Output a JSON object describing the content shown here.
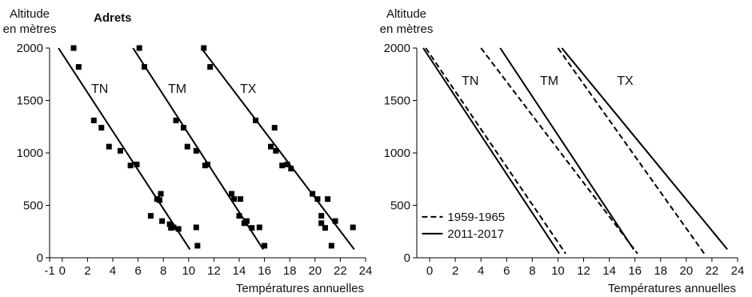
{
  "chart_data": [
    {
      "type": "scatter",
      "title": "Adrets",
      "ylabel_lines": [
        "Altitude",
        "en mètres"
      ],
      "xlabel": "Températures annuelles",
      "xlim": [
        -1,
        24
      ],
      "ylim": [
        0,
        2000
      ],
      "xticks": [
        -1,
        0,
        2,
        4,
        6,
        8,
        10,
        12,
        14,
        16,
        18,
        20,
        22,
        24
      ],
      "yticks": [
        0,
        500,
        1000,
        1500,
        2000
      ],
      "line_color": "#000000",
      "series": [
        {
          "name": "TN",
          "points": [
            [
              0.9,
              2000
            ],
            [
              1.3,
              1820
            ],
            [
              2.5,
              1310
            ],
            [
              3.1,
              1240
            ],
            [
              3.7,
              1060
            ],
            [
              4.6,
              1020
            ],
            [
              5.4,
              880
            ],
            [
              5.9,
              890
            ],
            [
              7.0,
              400
            ],
            [
              7.5,
              560
            ],
            [
              7.8,
              610
            ],
            [
              7.9,
              350
            ],
            [
              7.7,
              550
            ],
            [
              8.5,
              320
            ],
            [
              8.8,
              290
            ],
            [
              8.6,
              285
            ],
            [
              9.2,
              275
            ],
            [
              10.6,
              290
            ],
            [
              10.7,
              115
            ]
          ],
          "fit": [
            [
              -0.3,
              2000
            ],
            [
              10.1,
              80
            ]
          ]
        },
        {
          "name": "TM",
          "points": [
            [
              6.1,
              2000
            ],
            [
              6.5,
              1820
            ],
            [
              9.0,
              1310
            ],
            [
              9.6,
              1240
            ],
            [
              9.9,
              1060
            ],
            [
              10.6,
              1020
            ],
            [
              11.3,
              880
            ],
            [
              11.5,
              890
            ],
            [
              13.4,
              610
            ],
            [
              13.6,
              560
            ],
            [
              14.1,
              560
            ],
            [
              14.0,
              400
            ],
            [
              14.4,
              330
            ],
            [
              14.6,
              350
            ],
            [
              15.0,
              285
            ],
            [
              15.6,
              290
            ],
            [
              16.0,
              115
            ]
          ],
          "fit": [
            [
              5.6,
              2000
            ],
            [
              15.9,
              80
            ]
          ]
        },
        {
          "name": "TX",
          "points": [
            [
              11.2,
              2000
            ],
            [
              11.7,
              1820
            ],
            [
              15.3,
              1310
            ],
            [
              16.8,
              1240
            ],
            [
              16.5,
              1060
            ],
            [
              16.9,
              1020
            ],
            [
              17.4,
              880
            ],
            [
              17.8,
              890
            ],
            [
              18.1,
              850
            ],
            [
              19.8,
              610
            ],
            [
              20.2,
              560
            ],
            [
              20.5,
              400
            ],
            [
              20.5,
              330
            ],
            [
              20.8,
              285
            ],
            [
              21.0,
              560
            ],
            [
              21.3,
              115
            ],
            [
              21.6,
              350
            ],
            [
              23.0,
              290
            ]
          ],
          "fit": [
            [
              11.0,
              2000
            ],
            [
              23.1,
              80
            ]
          ]
        }
      ]
    },
    {
      "type": "line",
      "ylabel_lines": [
        "Altitude",
        "en mètres"
      ],
      "xlabel": "Températures annuelles",
      "xlim": [
        -1,
        24
      ],
      "ylim": [
        0,
        2000
      ],
      "xticks": [
        0,
        2,
        4,
        6,
        8,
        10,
        12,
        14,
        16,
        18,
        20,
        22,
        24
      ],
      "yticks": [
        0,
        500,
        1000,
        1500,
        2000
      ],
      "legend": {
        "placement": "bottom-left",
        "entries": [
          {
            "label": "1959-1965",
            "style": "dashed"
          },
          {
            "label": "2011-2017",
            "style": "solid"
          }
        ]
      },
      "group_labels": [
        {
          "text": "TN",
          "x": 2.5,
          "y": 1650
        },
        {
          "text": "TM",
          "x": 8.6,
          "y": 1650
        },
        {
          "text": "TX",
          "x": 14.6,
          "y": 1650
        }
      ],
      "series": [
        {
          "group": "TN",
          "style": "dashed",
          "points": [
            [
              -0.3,
              2000
            ],
            [
              10.6,
              40
            ]
          ]
        },
        {
          "group": "TN",
          "style": "solid",
          "points": [
            [
              -0.5,
              2000
            ],
            [
              10.1,
              40
            ]
          ]
        },
        {
          "group": "TM",
          "style": "dashed",
          "points": [
            [
              4.0,
              2000
            ],
            [
              16.2,
              40
            ]
          ]
        },
        {
          "group": "TM",
          "style": "solid",
          "points": [
            [
              5.5,
              2000
            ],
            [
              15.9,
              80
            ]
          ]
        },
        {
          "group": "TX",
          "style": "dashed",
          "points": [
            [
              10.0,
              2000
            ],
            [
              21.4,
              40
            ]
          ]
        },
        {
          "group": "TX",
          "style": "solid",
          "points": [
            [
              10.3,
              2000
            ],
            [
              23.2,
              80
            ]
          ]
        }
      ]
    }
  ],
  "labels": {
    "tn": "TN",
    "tm": "TM",
    "tx": "TX"
  }
}
